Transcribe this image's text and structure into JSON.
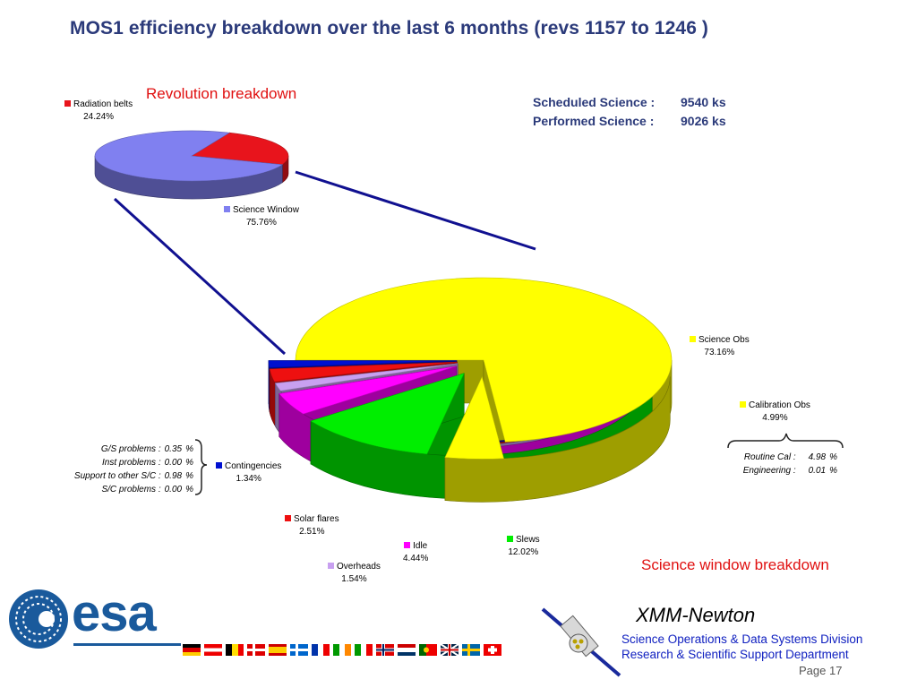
{
  "title": "MOS1 efficiency breakdown over the last 6 months (revs  1157 to 1246 )",
  "revolution_title": "Revolution breakdown",
  "science_window_title": "Science window breakdown",
  "scheduled": {
    "label": "Scheduled Science :",
    "value": "9540 ks"
  },
  "performed": {
    "label": "Performed Science :",
    "value": "9026 ks"
  },
  "chart_data": [
    {
      "type": "pie",
      "title": "Revolution breakdown",
      "slices": [
        {
          "name": "Radiation belts",
          "value": 24.24,
          "label": "24.24%",
          "color": "#e8141c"
        },
        {
          "name": "Science Window",
          "value": 75.76,
          "label": "75.76%",
          "color": "#8080f0"
        }
      ]
    },
    {
      "type": "pie",
      "title": "Science window breakdown",
      "slices": [
        {
          "name": "Science Obs",
          "value": 73.16,
          "label": "73.16%",
          "color": "#ffff00"
        },
        {
          "name": "Calibration Obs",
          "value": 4.99,
          "label": "4.99%",
          "color": "#ffff00"
        },
        {
          "name": "Slews",
          "value": 12.02,
          "label": "12.02%",
          "color": "#00ee00"
        },
        {
          "name": "Idle",
          "value": 4.44,
          "label": "4.44%",
          "color": "#ff00ff"
        },
        {
          "name": "Overheads",
          "value": 1.54,
          "label": "1.54%",
          "color": "#c8a0f0"
        },
        {
          "name": "Solar flares",
          "value": 2.51,
          "label": "2.51%",
          "color": "#ee1010"
        },
        {
          "name": "Contingencies",
          "value": 1.34,
          "label": "1.34%",
          "color": "#0010d0"
        }
      ]
    }
  ],
  "contingency_details": [
    {
      "label": "G/S problems :",
      "value": "0.35",
      "unit": "%"
    },
    {
      "label": "Inst problems :",
      "value": "0.00",
      "unit": "%"
    },
    {
      "label": "Support to other S/C :",
      "value": "0.98",
      "unit": "%"
    },
    {
      "label": "S/C problems :",
      "value": "0.00",
      "unit": "%"
    }
  ],
  "calibration_details": [
    {
      "label": "Routine Cal :",
      "value": "4.98",
      "unit": "%"
    },
    {
      "label": "Engineering :",
      "value": "0.01",
      "unit": "%"
    }
  ],
  "footer": {
    "logo_text": "esa",
    "mission": "XMM-Newton",
    "dept_line1": "Science Operations & Data Systems Division",
    "dept_line2": "Research & Scientific Support Department",
    "page": "Page 17"
  },
  "colors": {
    "title": "#2b3a7a",
    "red_title": "#e01010",
    "esa_blue": "#1a5a9c",
    "dept_blue": "#1020c0"
  }
}
